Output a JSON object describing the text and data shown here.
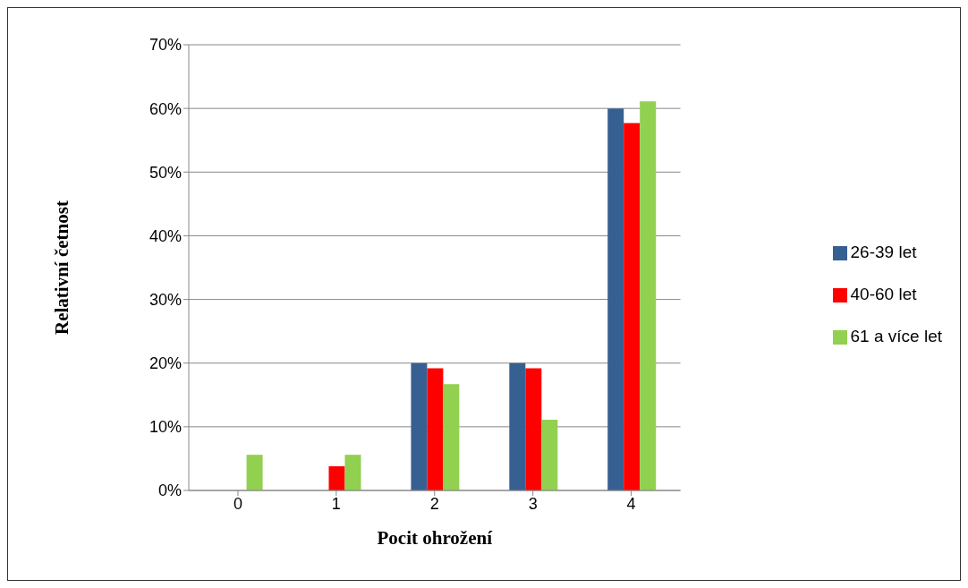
{
  "chart_data": {
    "type": "bar",
    "xlabel": "Pocit ohrožení",
    "ylabel": "Relativní četnost",
    "categories": [
      "0",
      "1",
      "2",
      "3",
      "4"
    ],
    "series": [
      {
        "name": "26-39 let",
        "color": "#376092",
        "values": [
          0,
          0,
          20,
          20,
          60
        ]
      },
      {
        "name": "40-60 let",
        "color": "#ff0000",
        "values": [
          0,
          3.8,
          19.2,
          19.2,
          57.7
        ]
      },
      {
        "name": "61 a více let",
        "color": "#92d050",
        "values": [
          5.6,
          5.6,
          16.7,
          11.1,
          61.1
        ]
      }
    ],
    "ylim": [
      0,
      70
    ],
    "yticks": [
      {
        "value": 0,
        "label": "0%"
      },
      {
        "value": 10,
        "label": "10%"
      },
      {
        "value": 20,
        "label": "20%"
      },
      {
        "value": 30,
        "label": "30%"
      },
      {
        "value": 40,
        "label": "40%"
      },
      {
        "value": 50,
        "label": "50%"
      },
      {
        "value": 60,
        "label": "60%"
      },
      {
        "value": 70,
        "label": "70%"
      }
    ],
    "grid": "y",
    "legend": "right"
  }
}
